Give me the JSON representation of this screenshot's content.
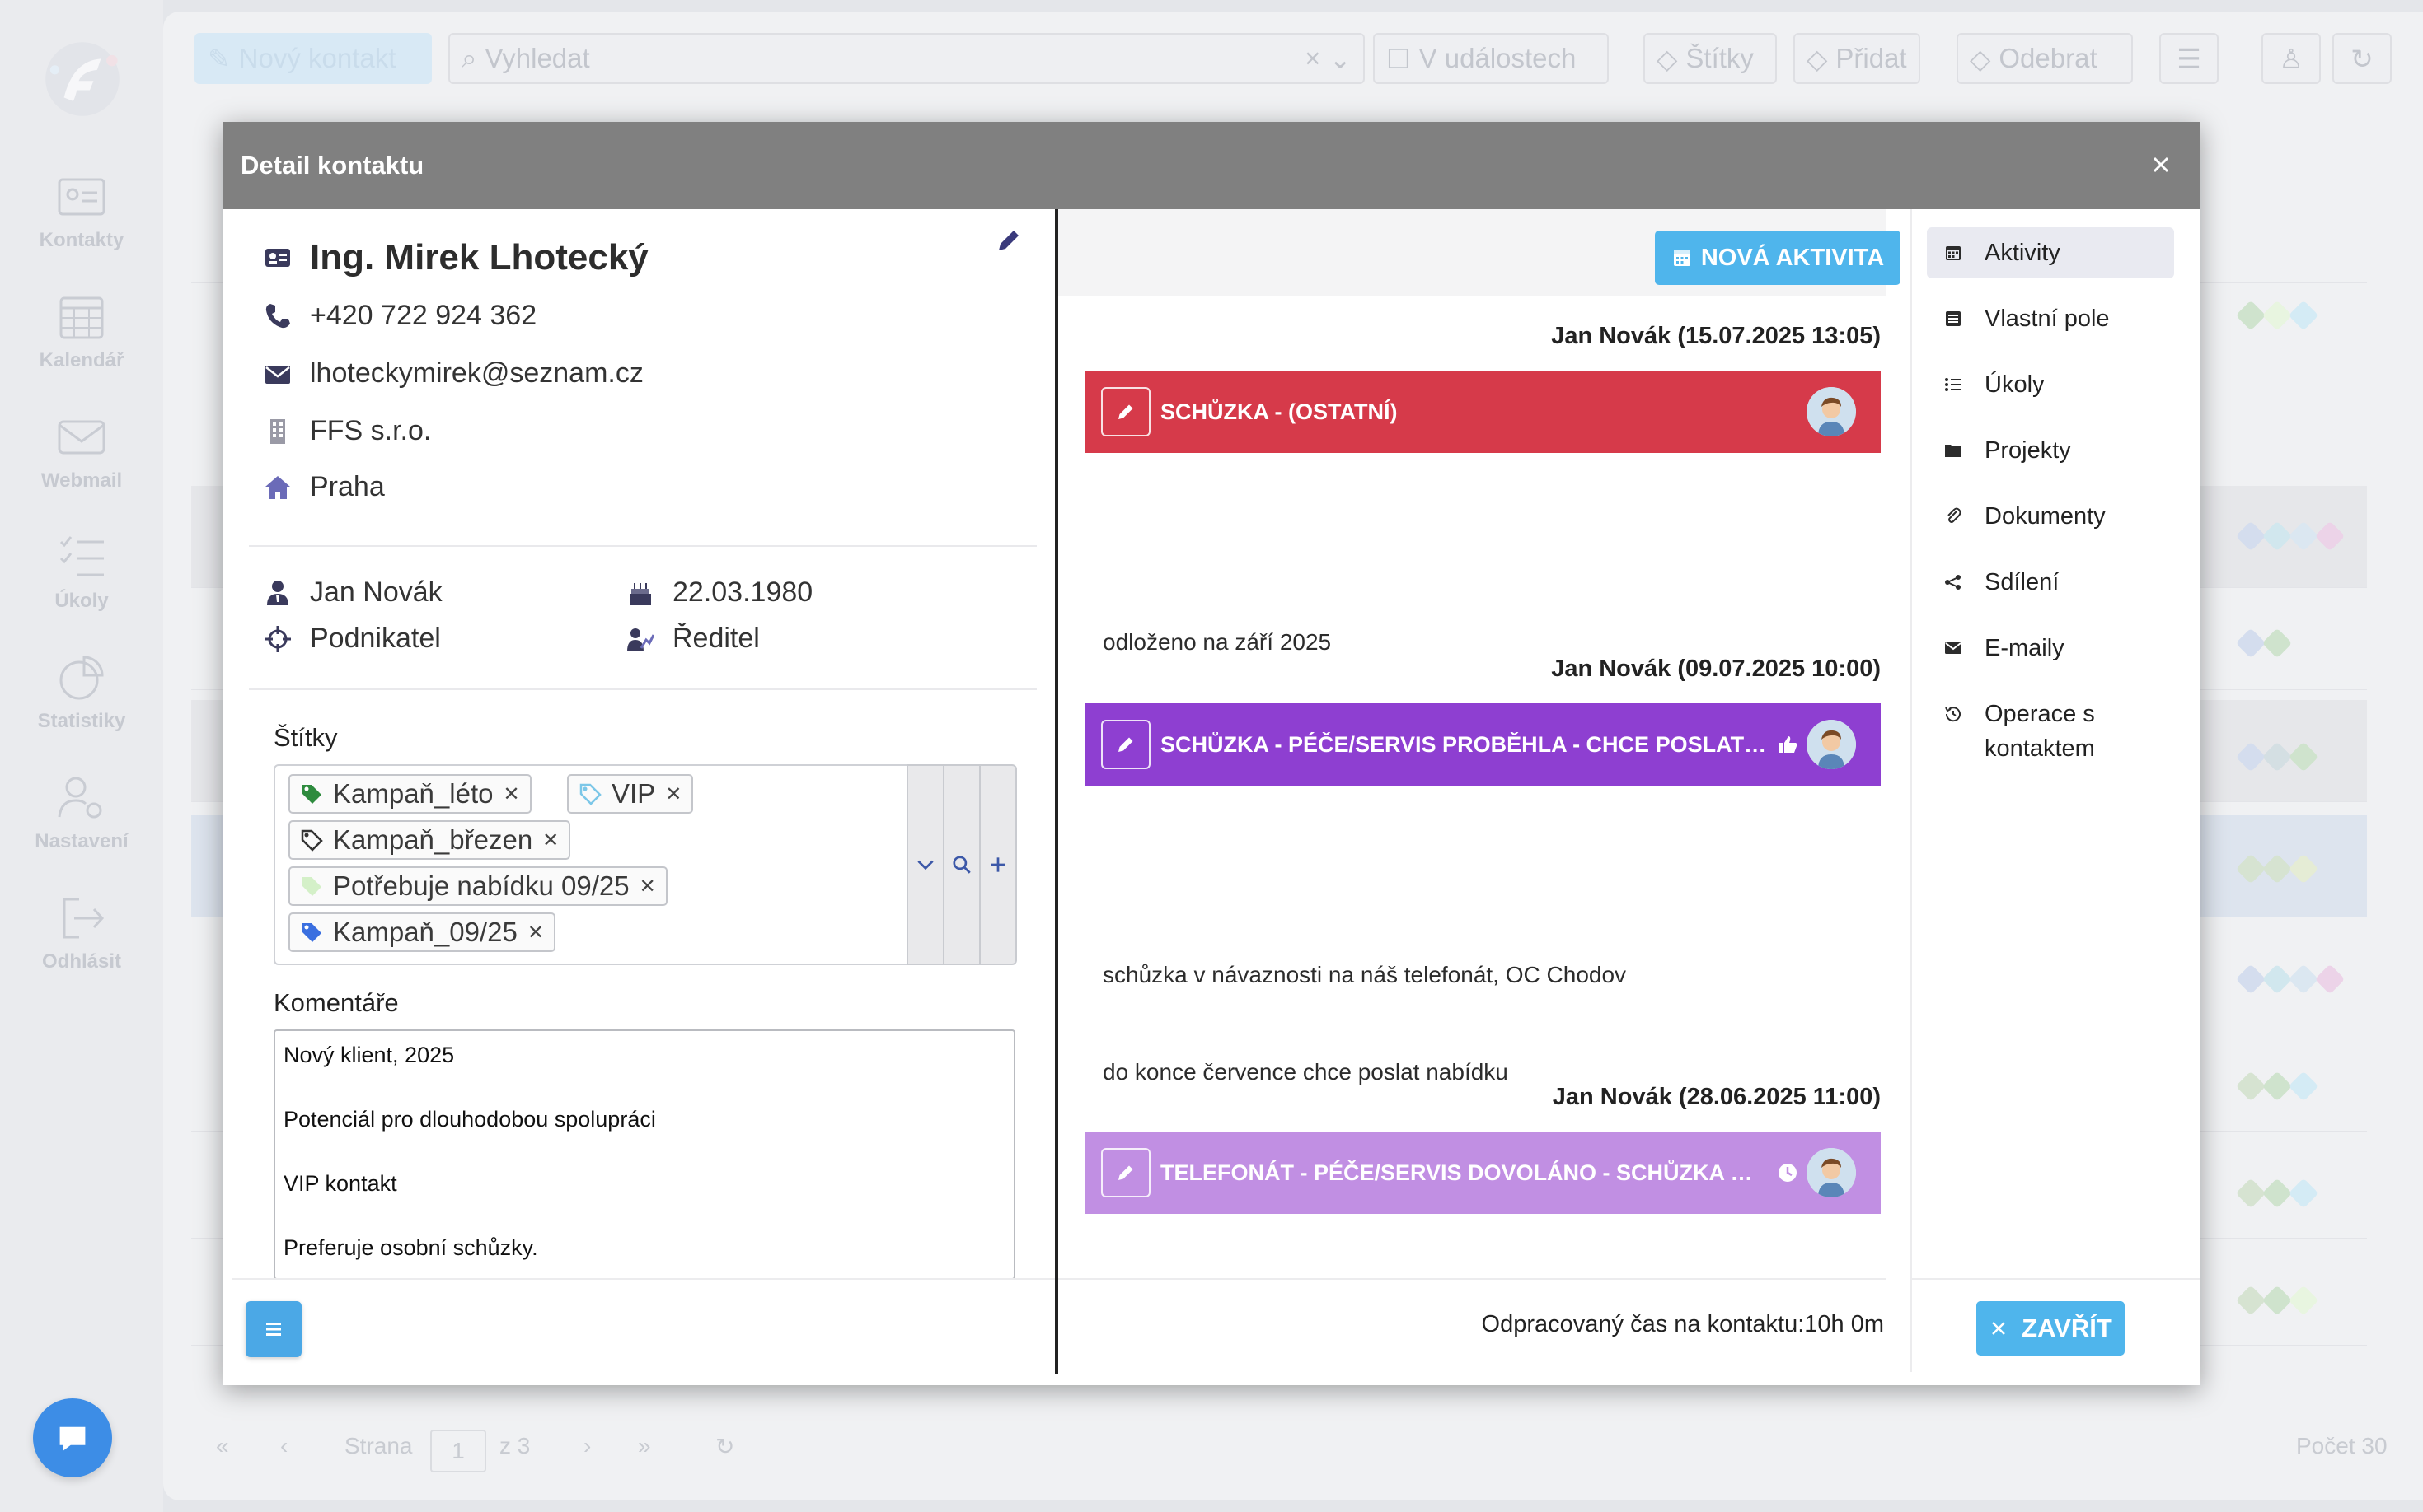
{
  "sidebar": {
    "items": [
      {
        "label": "Kontakty",
        "icon": "contact-card-icon"
      },
      {
        "label": "Kalendář",
        "icon": "calendar-icon"
      },
      {
        "label": "Webmail",
        "icon": "mail-icon"
      },
      {
        "label": "Úkoly",
        "icon": "checklist-icon"
      },
      {
        "label": "Statistiky",
        "icon": "pie-chart-icon"
      },
      {
        "label": "Nastavení",
        "icon": "user-settings-icon"
      },
      {
        "label": "Odhlásit",
        "icon": "logout-icon"
      }
    ]
  },
  "toolbar": {
    "new_contact": "Nový kontakt",
    "search_placeholder": "Vyhledat",
    "in_events": "V událostech",
    "tags": "Štítky",
    "add": "Přidat",
    "remove": "Odebrat"
  },
  "pager": {
    "page_label": "Strana",
    "page": "1",
    "of": "z 3",
    "count": "Počet 30"
  },
  "modal": {
    "title": "Detail kontaktu",
    "contact": {
      "name": "Ing. Mirek Lhotecký",
      "phone": "+420 722 924 362",
      "email": "lhoteckymirek@seznam.cz",
      "company": "FFS s.r.o.",
      "city": "Praha",
      "owner": "Jan Novák",
      "birthdate": "22.03.1980",
      "type": "Podnikatel",
      "position": "Ředitel"
    },
    "tags_label": "Štítky",
    "tags": [
      {
        "label": "Kampaň_léto",
        "color": "#2e8b3e"
      },
      {
        "label": "VIP",
        "color": "#7cc7e8"
      },
      {
        "label": "Kampaň_březen",
        "color": "#333333"
      },
      {
        "label": "Potřebuje nabídku 09/25",
        "color": "#d4f0c8"
      },
      {
        "label": "Kampaň_09/25",
        "color": "#3a6fe0"
      }
    ],
    "comments_label": "Komentáře",
    "comments": [
      "Nový klient, 2025",
      "Potenciál pro dlouhodobou spolupráci",
      "VIP kontakt",
      "Preferuje osobní schůzky."
    ],
    "new_activity": "NOVÁ AKTIVITA",
    "activities": [
      {
        "meta": "Jan Novák (15.07.2025 13:05)",
        "title": "SCHŮZKA - (OSTATNÍ)",
        "color": "#d63a4a",
        "icon": "",
        "notes": [
          "odloženo na září 2025"
        ]
      },
      {
        "meta": "Jan Novák (09.07.2025 10:00)",
        "title": "SCHŮZKA - PÉČE/SERVIS PROBĚHLA - CHCE POSLAT PO...",
        "color": "#8e3fd1",
        "icon": "thumbs-up-icon",
        "notes": [
          "schůzka v návaznosti na náš telefonát, OC Chodov",
          "do konce července chce poslat nabídku"
        ]
      },
      {
        "meta": "Jan Novák (28.06.2025 11:00)",
        "title": "TELEFONÁT - PÉČE/SERVIS DOVOLÁNO - SCHŮZKA OSTA...",
        "color": "#c18fe3",
        "icon": "clock-icon",
        "notes": []
      }
    ],
    "worked_time": "Odpracovaný čas na kontaktu:10h 0m",
    "side_menu": [
      {
        "label": "Aktivity",
        "icon": "calendar-icon"
      },
      {
        "label": "Vlastní pole",
        "icon": "list-box-icon"
      },
      {
        "label": "Úkoly",
        "icon": "list-icon"
      },
      {
        "label": "Projekty",
        "icon": "folder-icon"
      },
      {
        "label": "Dokumenty",
        "icon": "paperclip-icon"
      },
      {
        "label": "Sdílení",
        "icon": "share-icon"
      },
      {
        "label": "E-maily",
        "icon": "envelope-icon"
      },
      {
        "label": "Operace s kontaktem",
        "icon": "history-icon"
      }
    ],
    "close_label": "ZAVŘÍT"
  }
}
